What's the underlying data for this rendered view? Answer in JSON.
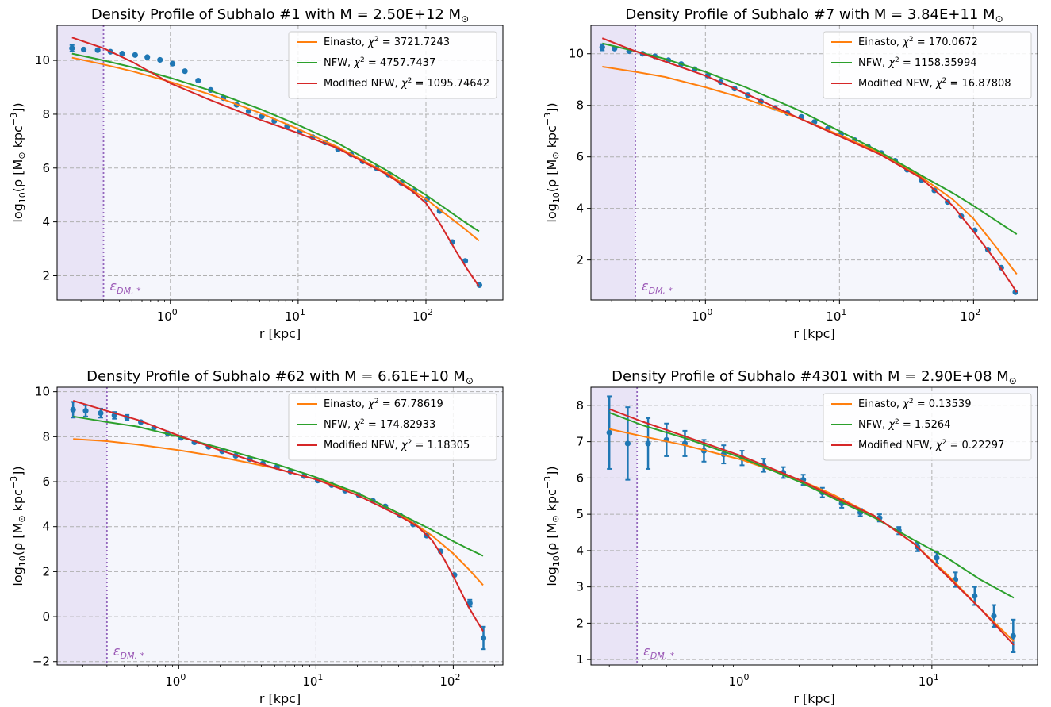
{
  "chart_data": [
    {
      "type": "line",
      "title": "Density Profile of Subhalo #1 with M = 2.50E+12 M",
      "title_suffix": "⊙",
      "xlabel": "r [kpc]",
      "ylabel_prefix": "log",
      "ylabel_sub": "10",
      "ylabel_body": "(ρ [M",
      "ylabel_sun": "⊙",
      "ylabel_unit": " kpc",
      "ylabel_exp": "−3",
      "ylabel_close": "])",
      "xscale": "log",
      "xlim": [
        0.13,
        400
      ],
      "ylim": [
        1.1,
        11.3
      ],
      "yticks": [
        2,
        4,
        6,
        8,
        10
      ],
      "ytick_labels": [
        "2",
        "4",
        "6",
        "8",
        "10"
      ],
      "xticks": [
        1,
        10,
        100
      ],
      "xtick_base": "10",
      "xtick_exps": [
        "0",
        "1",
        "2"
      ],
      "grid": true,
      "legend_location": "upper right",
      "softening": {
        "r": 0.3,
        "label_main": "ε",
        "label_sub": "DM, *"
      },
      "series": [
        {
          "name": "Einasto",
          "chi2": "3721.7243",
          "color": "#ff7f0e",
          "x": [
            0.17,
            0.3,
            0.5,
            1,
            2,
            5,
            10,
            20,
            50,
            100,
            200,
            260
          ],
          "y": [
            10.1,
            9.85,
            9.6,
            9.2,
            8.75,
            8.05,
            7.45,
            6.8,
            5.8,
            4.85,
            3.75,
            3.3
          ]
        },
        {
          "name": "NFW",
          "chi2": "4757.7437",
          "color": "#2ca02c",
          "x": [
            0.17,
            0.3,
            0.5,
            1,
            2,
            5,
            10,
            20,
            50,
            100,
            200,
            260
          ],
          "y": [
            10.25,
            10.0,
            9.75,
            9.35,
            8.9,
            8.2,
            7.6,
            6.95,
            5.9,
            5.0,
            4.0,
            3.65
          ]
        },
        {
          "name": "Modified NFW",
          "chi2": "1095.74642",
          "color": "#d62728",
          "x": [
            0.17,
            0.3,
            0.5,
            1,
            2,
            5,
            10,
            20,
            50,
            80,
            100,
            130,
            170,
            210,
            260
          ],
          "y": [
            10.85,
            10.45,
            9.95,
            9.15,
            8.55,
            7.8,
            7.3,
            6.75,
            5.75,
            5.1,
            4.7,
            3.9,
            2.95,
            2.25,
            1.6
          ]
        }
      ],
      "points": {
        "x": [
          0.17,
          0.21,
          0.27,
          0.34,
          0.42,
          0.53,
          0.66,
          0.83,
          1.04,
          1.3,
          1.65,
          2.07,
          2.6,
          3.3,
          4.1,
          5.2,
          6.5,
          8.2,
          10.3,
          13,
          16.3,
          20.5,
          26,
          32,
          41,
          51,
          64,
          81,
          102,
          128,
          161,
          203,
          262
        ],
        "y": [
          10.45,
          10.4,
          10.38,
          10.32,
          10.25,
          10.2,
          10.12,
          10.02,
          9.88,
          9.6,
          9.25,
          8.9,
          8.6,
          8.35,
          8.12,
          7.92,
          7.75,
          7.55,
          7.35,
          7.15,
          6.95,
          6.7,
          6.5,
          6.25,
          6.0,
          5.75,
          5.45,
          5.15,
          4.85,
          4.4,
          3.25,
          2.55,
          1.65
        ],
        "err": [
          0.12,
          0.05,
          0.04,
          0.03,
          0.03,
          0.03,
          0.03,
          0.03,
          0.03,
          0.03,
          0.03,
          0.03,
          0.03,
          0.03,
          0.03,
          0.03,
          0.03,
          0.03,
          0.03,
          0.03,
          0.03,
          0.03,
          0.03,
          0.03,
          0.03,
          0.03,
          0.03,
          0.03,
          0.03,
          0.03,
          0.03,
          0.03,
          0.03
        ]
      }
    },
    {
      "type": "line",
      "title": "Density Profile of Subhalo #7 with M = 3.84E+11 M",
      "title_suffix": "⊙",
      "xlabel": "r [kpc]",
      "ylabel_prefix": "log",
      "ylabel_sub": "10",
      "ylabel_body": "(ρ [M",
      "ylabel_sun": "⊙",
      "ylabel_unit": " kpc",
      "ylabel_exp": "−3",
      "ylabel_close": "])",
      "xscale": "log",
      "xlim": [
        0.14,
        300
      ],
      "ylim": [
        0.45,
        11.1
      ],
      "yticks": [
        2,
        4,
        6,
        8,
        10
      ],
      "ytick_labels": [
        "2",
        "4",
        "6",
        "8",
        "10"
      ],
      "xticks": [
        1,
        10,
        100
      ],
      "xtick_base": "10",
      "xtick_exps": [
        "0",
        "1",
        "2"
      ],
      "grid": true,
      "legend_location": "upper right",
      "softening": {
        "r": 0.3,
        "label_main": "ε",
        "label_sub": "DM, *"
      },
      "series": [
        {
          "name": "Einasto",
          "chi2": "170.0672",
          "color": "#ff7f0e",
          "x": [
            0.17,
            0.3,
            0.5,
            1,
            2,
            5,
            10,
            20,
            40,
            70,
            100,
            150,
            210
          ],
          "y": [
            9.5,
            9.3,
            9.1,
            8.7,
            8.25,
            7.5,
            6.85,
            6.15,
            5.25,
            4.35,
            3.6,
            2.45,
            1.45
          ]
        },
        {
          "name": "NFW",
          "chi2": "1158.35994",
          "color": "#2ca02c",
          "x": [
            0.17,
            0.3,
            0.5,
            1,
            2,
            5,
            10,
            20,
            40,
            70,
            100,
            150,
            210
          ],
          "y": [
            10.4,
            10.1,
            9.8,
            9.3,
            8.7,
            7.8,
            7.0,
            6.2,
            5.3,
            4.6,
            4.1,
            3.5,
            3.0
          ]
        },
        {
          "name": "Modified NFW",
          "chi2": "16.87808",
          "color": "#d62728",
          "x": [
            0.17,
            0.3,
            0.5,
            1,
            2,
            5,
            10,
            20,
            40,
            70,
            100,
            150,
            210
          ],
          "y": [
            10.6,
            10.1,
            9.7,
            9.15,
            8.45,
            7.5,
            6.8,
            6.1,
            5.2,
            4.1,
            3.1,
            1.9,
            0.75
          ]
        }
      ],
      "points": {
        "x": [
          0.17,
          0.21,
          0.27,
          0.34,
          0.42,
          0.53,
          0.66,
          0.83,
          1.04,
          1.3,
          1.65,
          2.07,
          2.6,
          3.3,
          4.1,
          5.2,
          6.5,
          8.2,
          10.3,
          13,
          16.3,
          20.5,
          26,
          32,
          41,
          51,
          64,
          81,
          102,
          128,
          161,
          205
        ],
        "y": [
          10.25,
          10.2,
          10.1,
          10.0,
          9.9,
          9.75,
          9.6,
          9.4,
          9.15,
          8.9,
          8.65,
          8.4,
          8.15,
          7.9,
          7.7,
          7.55,
          7.35,
          7.1,
          6.9,
          6.65,
          6.4,
          6.15,
          5.85,
          5.5,
          5.1,
          4.7,
          4.25,
          3.7,
          3.15,
          2.4,
          1.7,
          0.75
        ],
        "err": [
          0.12,
          0.06,
          0.05,
          0.04,
          0.03,
          0.03,
          0.03,
          0.03,
          0.03,
          0.03,
          0.03,
          0.03,
          0.03,
          0.03,
          0.03,
          0.03,
          0.03,
          0.03,
          0.03,
          0.03,
          0.03,
          0.03,
          0.03,
          0.03,
          0.03,
          0.03,
          0.03,
          0.03,
          0.03,
          0.03,
          0.03,
          0.03
        ]
      }
    },
    {
      "type": "line",
      "title": "Density Profile of Subhalo #62 with M = 6.61E+10 M",
      "title_suffix": "⊙",
      "xlabel": "r [kpc]",
      "ylabel_prefix": "log",
      "ylabel_sub": "10",
      "ylabel_body": "(ρ [M",
      "ylabel_sun": "⊙",
      "ylabel_unit": " kpc",
      "ylabel_exp": "−3",
      "ylabel_close": "])",
      "xscale": "log",
      "xlim": [
        0.13,
        230
      ],
      "ylim": [
        -2.15,
        10.2
      ],
      "yticks": [
        -2,
        0,
        2,
        4,
        6,
        8,
        10
      ],
      "ytick_labels": [
        "−2",
        "0",
        "2",
        "4",
        "6",
        "8",
        "10"
      ],
      "xticks": [
        1,
        10,
        100
      ],
      "xtick_base": "10",
      "xtick_exps": [
        "0",
        "1",
        "2"
      ],
      "grid": true,
      "legend_location": "upper right",
      "softening": {
        "r": 0.3,
        "label_main": "ε",
        "label_sub": "DM, *"
      },
      "series": [
        {
          "name": "Einasto",
          "chi2": "67.78619",
          "color": "#ff7f0e",
          "x": [
            0.17,
            0.3,
            0.5,
            1,
            2,
            5,
            10,
            20,
            40,
            70,
            100,
            130,
            165
          ],
          "y": [
            7.9,
            7.8,
            7.65,
            7.4,
            7.1,
            6.6,
            6.1,
            5.5,
            4.6,
            3.6,
            2.8,
            2.1,
            1.4
          ]
        },
        {
          "name": "NFW",
          "chi2": "174.82933",
          "color": "#2ca02c",
          "x": [
            0.17,
            0.3,
            0.5,
            1,
            2,
            5,
            10,
            20,
            40,
            70,
            100,
            130,
            165
          ],
          "y": [
            8.9,
            8.65,
            8.45,
            8.0,
            7.5,
            6.8,
            6.2,
            5.5,
            4.6,
            3.85,
            3.35,
            3.0,
            2.7
          ]
        },
        {
          "name": "Modified NFW",
          "chi2": "1.18305",
          "color": "#d62728",
          "x": [
            0.17,
            0.3,
            0.5,
            1,
            2,
            5,
            10,
            20,
            40,
            55,
            70,
            85,
            100,
            130,
            165
          ],
          "y": [
            9.6,
            9.15,
            8.75,
            8.05,
            7.4,
            6.6,
            6.1,
            5.4,
            4.5,
            4.0,
            3.4,
            2.6,
            1.8,
            0.4,
            -0.65
          ]
        }
      ],
      "points": {
        "x": [
          0.17,
          0.21,
          0.27,
          0.34,
          0.42,
          0.53,
          0.66,
          0.83,
          1.04,
          1.3,
          1.65,
          2.07,
          2.6,
          3.3,
          4.1,
          5.2,
          6.5,
          8.2,
          10.3,
          13,
          16.3,
          20.5,
          26,
          32,
          41,
          51,
          64,
          81,
          102,
          132,
          166
        ],
        "y": [
          9.2,
          9.15,
          9.05,
          8.95,
          8.85,
          8.65,
          8.4,
          8.15,
          7.95,
          7.75,
          7.55,
          7.35,
          7.15,
          7.0,
          6.8,
          6.65,
          6.45,
          6.25,
          6.05,
          5.85,
          5.6,
          5.4,
          5.15,
          4.9,
          4.5,
          4.1,
          3.6,
          2.9,
          1.85,
          0.6,
          -0.95
        ],
        "err": [
          0.35,
          0.25,
          0.2,
          0.15,
          0.12,
          0.1,
          0.08,
          0.06,
          0.05,
          0.05,
          0.04,
          0.04,
          0.04,
          0.04,
          0.04,
          0.04,
          0.04,
          0.04,
          0.04,
          0.04,
          0.04,
          0.04,
          0.04,
          0.04,
          0.04,
          0.06,
          0.07,
          0.08,
          0.1,
          0.15,
          0.5
        ]
      }
    },
    {
      "type": "line",
      "title": "Density Profile of Subhalo #4301 with M = 2.90E+08 M",
      "title_suffix": "⊙",
      "xlabel": "r [kpc]",
      "ylabel_prefix": "log",
      "ylabel_sub": "10",
      "ylabel_body": "(ρ [M",
      "ylabel_sun": "⊙",
      "ylabel_unit": " kpc",
      "ylabel_exp": "−3",
      "ylabel_close": "])",
      "xscale": "log",
      "xlim": [
        0.16,
        36
      ],
      "ylim": [
        0.85,
        8.5
      ],
      "yticks": [
        1,
        2,
        3,
        4,
        5,
        6,
        7,
        8
      ],
      "ytick_labels": [
        "1",
        "2",
        "3",
        "4",
        "5",
        "6",
        "7",
        "8"
      ],
      "xticks": [
        1,
        10
      ],
      "xtick_base": "10",
      "xtick_exps": [
        "0",
        "1"
      ],
      "grid": true,
      "legend_location": "upper right",
      "softening": {
        "r": 0.28,
        "label_main": "ε",
        "label_sub": "DM, *"
      },
      "series": [
        {
          "name": "Einasto",
          "chi2": "0.13539",
          "color": "#ff7f0e",
          "x": [
            0.2,
            0.3,
            0.5,
            1,
            2,
            3,
            5,
            8,
            12,
            18,
            27
          ],
          "y": [
            7.35,
            7.15,
            6.9,
            6.5,
            5.95,
            5.55,
            4.95,
            4.2,
            3.35,
            2.4,
            1.5
          ]
        },
        {
          "name": "NFW",
          "chi2": "1.5264",
          "color": "#2ca02c",
          "x": [
            0.2,
            0.3,
            0.5,
            1,
            2,
            3,
            5,
            8,
            12,
            18,
            27
          ],
          "y": [
            7.8,
            7.45,
            7.1,
            6.55,
            5.9,
            5.45,
            4.9,
            4.3,
            3.8,
            3.2,
            2.7
          ]
        },
        {
          "name": "Modified NFW",
          "chi2": "0.22297",
          "color": "#d62728",
          "x": [
            0.2,
            0.3,
            0.5,
            1,
            2,
            3,
            5,
            8,
            12,
            18,
            27
          ],
          "y": [
            7.9,
            7.55,
            7.15,
            6.6,
            5.95,
            5.5,
            4.95,
            4.2,
            3.3,
            2.4,
            1.4
          ]
        }
      ],
      "points": {
        "x": [
          0.2,
          0.25,
          0.32,
          0.4,
          0.5,
          0.63,
          0.8,
          1.0,
          1.3,
          1.65,
          2.1,
          2.65,
          3.35,
          4.2,
          5.3,
          6.7,
          8.4,
          10.6,
          13.3,
          16.8,
          21.2,
          26.8
        ],
        "y": [
          7.25,
          6.95,
          6.95,
          7.05,
          6.95,
          6.75,
          6.65,
          6.55,
          6.35,
          6.15,
          5.95,
          5.6,
          5.3,
          5.05,
          4.9,
          4.55,
          4.1,
          3.8,
          3.2,
          2.75,
          2.2,
          1.65
        ],
        "err": [
          1.0,
          1.0,
          0.7,
          0.45,
          0.35,
          0.3,
          0.25,
          0.2,
          0.18,
          0.15,
          0.14,
          0.13,
          0.12,
          0.1,
          0.1,
          0.1,
          0.12,
          0.15,
          0.2,
          0.25,
          0.3,
          0.45
        ]
      }
    }
  ]
}
